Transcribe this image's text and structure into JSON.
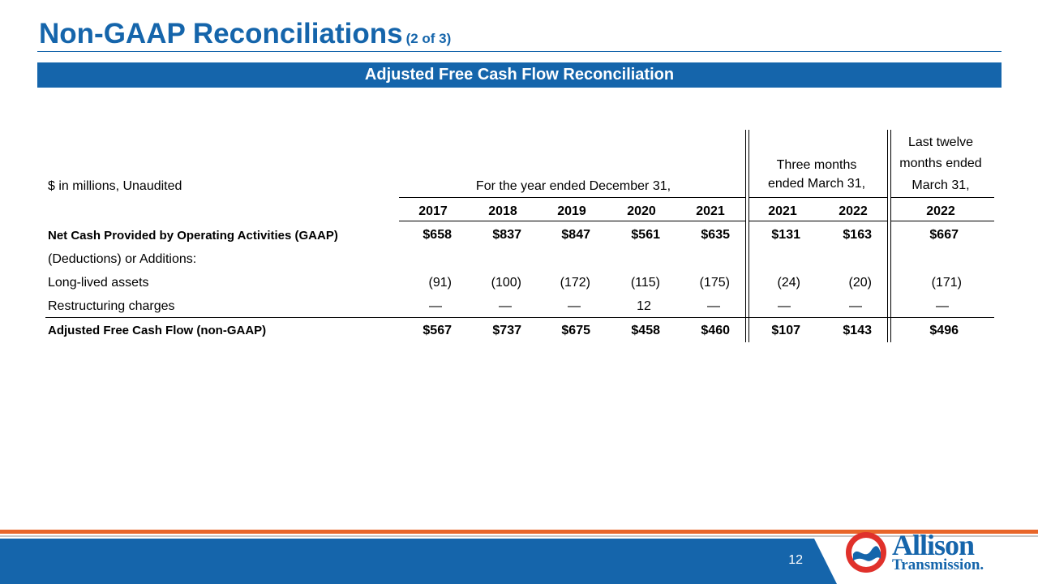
{
  "header": {
    "title": "Non-GAAP Reconciliations",
    "title_suffix": "(2 of 3)",
    "banner": "Adjusted Free Cash Flow Reconciliation"
  },
  "table": {
    "units_label": "$ in millions, Unaudited",
    "group_headers": {
      "annual": "For the year ended December 31,",
      "quarter_line1": "Three months",
      "quarter_line2": "ended March 31,",
      "ltm_line1": "Last twelve",
      "ltm_line2": "months ended",
      "ltm_line3": "March 31,"
    },
    "columns": [
      "2017",
      "2018",
      "2019",
      "2020",
      "2021",
      "2021",
      "2022",
      "2022"
    ],
    "rows": [
      {
        "label": "Net Cash Provided by Operating Activities (GAAP)",
        "values": [
          "$658",
          "$837",
          "$847",
          "$561",
          "$635",
          "$131",
          "$163",
          "$667"
        ]
      },
      {
        "label": "(Deductions) or Additions:",
        "values": []
      },
      {
        "label": "Long-lived assets",
        "values": [
          "(91)",
          "(100)",
          "(172)",
          "(115)",
          "(175)",
          "(24)",
          "(20)",
          "(171)"
        ]
      },
      {
        "label": "Restructuring charges",
        "values": [
          "—",
          "—",
          "—",
          "12",
          "—",
          "—",
          "—",
          "—"
        ]
      },
      {
        "label": "Adjusted Free Cash Flow (non-GAAP)",
        "values": [
          "$567",
          "$737",
          "$675",
          "$458",
          "$460",
          "$107",
          "$143",
          "$496"
        ]
      }
    ]
  },
  "footer": {
    "page_number": "12",
    "logo_text_1": "Allison",
    "logo_text_2": "Transmission.",
    "colors": {
      "brand_blue": "#1565ab",
      "accent_orange": "#e8662a",
      "logo_red": "#e0312b"
    }
  }
}
